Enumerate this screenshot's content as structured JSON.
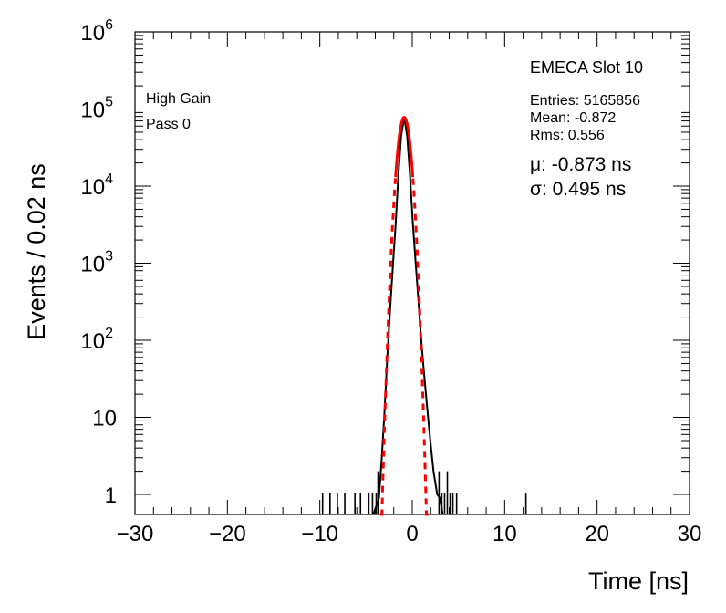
{
  "chart_data": {
    "type": "histogram",
    "xlabel": "Time [ns]",
    "ylabel": "Events / 0.02 ns",
    "xlim": [
      -30,
      30
    ],
    "ylim": [
      0.55,
      1000000
    ],
    "y_scale": "log",
    "x_ticks": [
      {
        "value": -30,
        "label": "−30"
      },
      {
        "value": -20,
        "label": "−20"
      },
      {
        "value": -10,
        "label": "−10"
      },
      {
        "value": 0,
        "label": "0"
      },
      {
        "value": 10,
        "label": "10"
      },
      {
        "value": 20,
        "label": "20"
      },
      {
        "value": 30,
        "label": "30"
      }
    ],
    "y_ticks": [
      {
        "value": 1,
        "base": "1",
        "exp": ""
      },
      {
        "value": 10,
        "base": "10",
        "exp": ""
      },
      {
        "value": 100,
        "base": "10",
        "exp": "2"
      },
      {
        "value": 1000,
        "base": "10",
        "exp": "3"
      },
      {
        "value": 10000,
        "base": "10",
        "exp": "4"
      },
      {
        "value": 100000,
        "base": "10",
        "exp": "5"
      },
      {
        "value": 1000000,
        "base": "10",
        "exp": "6"
      }
    ],
    "annotations": {
      "top_left": [
        "High Gain",
        "Pass 0"
      ],
      "title": "EMECA Slot 10",
      "stats": [
        "Entries: 5165856",
        "Mean: -0.872",
        "Rms: 0.556"
      ],
      "fit": [
        "μ: -0.873 ns",
        "σ: 0.495 ns"
      ]
    },
    "series": [
      {
        "style": "histogram",
        "color": "#000000",
        "core_points": [
          [
            -4.2,
            0.55
          ],
          [
            -3.6,
            0.9
          ],
          [
            -3.3,
            3
          ],
          [
            -3.0,
            12
          ],
          [
            -2.7,
            60
          ],
          [
            -2.4,
            250
          ],
          [
            -2.1,
            900
          ],
          [
            -1.8,
            3200
          ],
          [
            -1.5,
            14000
          ],
          [
            -1.2,
            45000
          ],
          [
            -0.873,
            78000
          ],
          [
            -0.55,
            45000
          ],
          [
            -0.25,
            14000
          ],
          [
            0.05,
            3500
          ],
          [
            0.35,
            1100
          ],
          [
            0.65,
            350
          ],
          [
            0.95,
            110
          ],
          [
            1.25,
            40
          ],
          [
            1.6,
            14
          ],
          [
            1.95,
            5
          ],
          [
            2.3,
            2
          ],
          [
            2.7,
            1
          ],
          [
            3.0,
            0.9
          ],
          [
            3.3,
            0.55
          ]
        ],
        "spikes": [
          [
            -9.7,
            1
          ],
          [
            -8.9,
            1
          ],
          [
            -8.1,
            1
          ],
          [
            -7.3,
            1
          ],
          [
            -6.2,
            1
          ],
          [
            -5.6,
            1
          ],
          [
            -4.7,
            1
          ],
          [
            -4.3,
            1
          ],
          [
            -3.9,
            1
          ],
          [
            -3.7,
            2
          ],
          [
            2.9,
            2
          ],
          [
            3.2,
            1
          ],
          [
            3.5,
            1
          ],
          [
            3.8,
            2
          ],
          [
            4.1,
            1
          ],
          [
            4.4,
            1
          ],
          [
            4.8,
            1
          ],
          [
            12.3,
            1
          ]
        ]
      },
      {
        "style": "dashed-gaussian",
        "color": "#ff0000",
        "amplitude": 78000,
        "mean": -0.873,
        "sigma": 0.495
      }
    ]
  }
}
